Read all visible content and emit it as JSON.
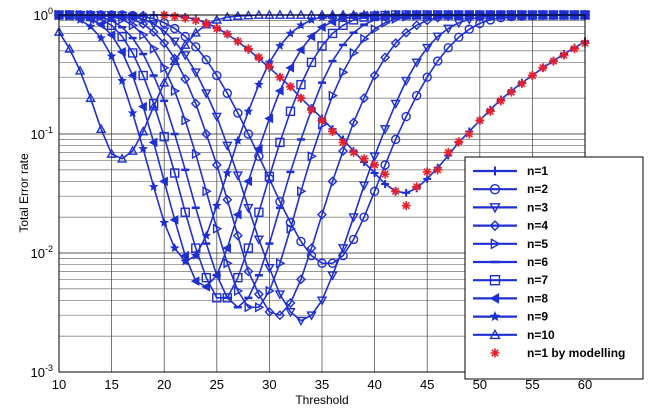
{
  "chart_data": {
    "type": "line",
    "title": "",
    "xlabel": "Threshold",
    "ylabel": "Total Error rate",
    "xlim": [
      10,
      60
    ],
    "ylim": [
      0.001,
      1
    ],
    "yscale": "log",
    "x_ticks": [
      "10",
      "15",
      "20",
      "25",
      "30",
      "35",
      "40",
      "45",
      "50",
      "55",
      "60"
    ],
    "y_ticks": [
      {
        "base": "10",
        "exp": "-3",
        "value": 0.001
      },
      {
        "base": "10",
        "exp": "-2",
        "value": 0.01
      },
      {
        "base": "10",
        "exp": "-1",
        "value": 0.1
      },
      {
        "base": "10",
        "exp": "0",
        "value": 1
      }
    ],
    "grid": true,
    "legend_position": "bottom-right",
    "line_color": "#1f2fd0",
    "model_color": "#e8202a",
    "x": [
      10,
      11,
      12,
      13,
      14,
      15,
      16,
      17,
      18,
      19,
      20,
      21,
      22,
      23,
      24,
      25,
      26,
      27,
      28,
      29,
      30,
      31,
      32,
      33,
      34,
      35,
      36,
      37,
      38,
      39,
      40,
      41,
      42,
      43,
      44,
      45,
      46,
      47,
      48,
      49,
      50,
      51,
      52,
      53,
      54,
      55,
      56,
      57,
      58,
      59,
      60
    ],
    "series": [
      {
        "name": "n=1",
        "marker": "plus",
        "values": [
          1.0,
          1.0,
          1.0,
          1.0,
          1.0,
          1.0,
          1.0,
          1.0,
          1.0,
          1.0,
          1.0,
          0.98,
          0.96,
          0.92,
          0.86,
          0.78,
          0.69,
          0.6,
          0.51,
          0.43,
          0.36,
          0.3,
          0.25,
          0.2,
          0.165,
          0.135,
          0.11,
          0.09,
          0.072,
          0.058,
          0.047,
          0.038,
          0.033,
          0.032,
          0.035,
          0.042,
          0.052,
          0.066,
          0.085,
          0.105,
          0.13,
          0.16,
          0.195,
          0.23,
          0.27,
          0.31,
          0.36,
          0.41,
          0.47,
          0.53,
          0.6
        ]
      },
      {
        "name": "n=2",
        "marker": "circle",
        "values": [
          1.0,
          1.0,
          1.0,
          1.0,
          1.0,
          1.0,
          1.0,
          0.99,
          0.97,
          0.93,
          0.86,
          0.77,
          0.66,
          0.54,
          0.42,
          0.31,
          0.22,
          0.15,
          0.1,
          0.065,
          0.042,
          0.027,
          0.018,
          0.0125,
          0.0095,
          0.0082,
          0.0082,
          0.0095,
          0.013,
          0.02,
          0.033,
          0.055,
          0.09,
          0.14,
          0.21,
          0.3,
          0.41,
          0.53,
          0.65,
          0.76,
          0.85,
          0.91,
          0.95,
          0.97,
          0.98,
          0.99,
          1.0,
          1.0,
          1.0,
          1.0,
          1.0
        ]
      },
      {
        "name": "n=3",
        "marker": "triangle-down",
        "values": [
          1.0,
          1.0,
          1.0,
          1.0,
          1.0,
          1.0,
          0.99,
          0.97,
          0.92,
          0.84,
          0.73,
          0.6,
          0.46,
          0.33,
          0.22,
          0.14,
          0.08,
          0.045,
          0.024,
          0.013,
          0.0075,
          0.0045,
          0.0032,
          0.0027,
          0.003,
          0.004,
          0.0065,
          0.011,
          0.02,
          0.037,
          0.065,
          0.11,
          0.18,
          0.28,
          0.4,
          0.53,
          0.66,
          0.77,
          0.86,
          0.92,
          0.96,
          0.98,
          0.99,
          1.0,
          1.0,
          1.0,
          1.0,
          1.0,
          1.0,
          1.0,
          1.0
        ]
      },
      {
        "name": "n=4",
        "marker": "diamond",
        "values": [
          1.0,
          1.0,
          1.0,
          1.0,
          1.0,
          0.99,
          0.97,
          0.92,
          0.84,
          0.72,
          0.58,
          0.43,
          0.29,
          0.18,
          0.1,
          0.055,
          0.028,
          0.014,
          0.007,
          0.0045,
          0.0032,
          0.003,
          0.0038,
          0.006,
          0.011,
          0.021,
          0.04,
          0.072,
          0.125,
          0.2,
          0.31,
          0.44,
          0.58,
          0.71,
          0.82,
          0.9,
          0.95,
          0.98,
          0.99,
          1.0,
          1.0,
          1.0,
          1.0,
          1.0,
          1.0,
          1.0,
          1.0,
          1.0,
          1.0,
          1.0,
          1.0
        ]
      },
      {
        "name": "n=5",
        "marker": "triangle-right",
        "values": [
          1.0,
          1.0,
          1.0,
          1.0,
          0.99,
          0.97,
          0.92,
          0.82,
          0.68,
          0.52,
          0.36,
          0.23,
          0.13,
          0.068,
          0.033,
          0.016,
          0.0082,
          0.0048,
          0.0035,
          0.0035,
          0.0048,
          0.0082,
          0.016,
          0.033,
          0.065,
          0.12,
          0.21,
          0.33,
          0.48,
          0.63,
          0.76,
          0.86,
          0.93,
          0.97,
          0.99,
          1.0,
          1.0,
          1.0,
          1.0,
          1.0,
          1.0,
          1.0,
          1.0,
          1.0,
          1.0,
          1.0,
          1.0,
          1.0,
          1.0,
          1.0,
          1.0
        ]
      },
      {
        "name": "n=6",
        "marker": "dash",
        "values": [
          1.0,
          1.0,
          1.0,
          0.99,
          0.96,
          0.9,
          0.79,
          0.64,
          0.47,
          0.31,
          0.19,
          0.1,
          0.05,
          0.024,
          0.012,
          0.0065,
          0.0042,
          0.0035,
          0.0042,
          0.0065,
          0.012,
          0.024,
          0.048,
          0.09,
          0.16,
          0.27,
          0.41,
          0.56,
          0.71,
          0.83,
          0.91,
          0.96,
          0.98,
          0.99,
          1.0,
          1.0,
          1.0,
          1.0,
          1.0,
          1.0,
          1.0,
          1.0,
          1.0,
          1.0,
          1.0,
          1.0,
          1.0,
          1.0,
          1.0,
          1.0,
          1.0
        ]
      },
      {
        "name": "n=7",
        "marker": "square",
        "values": [
          1.0,
          1.0,
          0.99,
          0.97,
          0.92,
          0.82,
          0.66,
          0.48,
          0.31,
          0.18,
          0.095,
          0.047,
          0.022,
          0.011,
          0.0062,
          0.0042,
          0.0042,
          0.0062,
          0.011,
          0.022,
          0.044,
          0.085,
          0.155,
          0.26,
          0.4,
          0.55,
          0.7,
          0.82,
          0.91,
          0.96,
          0.98,
          0.99,
          1.0,
          1.0,
          1.0,
          1.0,
          1.0,
          1.0,
          1.0,
          1.0,
          1.0,
          1.0,
          1.0,
          1.0,
          1.0,
          1.0,
          1.0,
          1.0,
          1.0,
          1.0,
          1.0
        ]
      },
      {
        "name": "n=8",
        "marker": "triangle-left",
        "values": [
          1.0,
          0.99,
          0.97,
          0.92,
          0.83,
          0.68,
          0.49,
          0.31,
          0.17,
          0.085,
          0.04,
          0.019,
          0.0095,
          0.0058,
          0.0052,
          0.0065,
          0.011,
          0.021,
          0.04,
          0.075,
          0.135,
          0.23,
          0.36,
          0.51,
          0.66,
          0.79,
          0.88,
          0.94,
          0.97,
          0.99,
          1.0,
          1.0,
          1.0,
          1.0,
          1.0,
          1.0,
          1.0,
          1.0,
          1.0,
          1.0,
          1.0,
          1.0,
          1.0,
          1.0,
          1.0,
          1.0,
          1.0,
          1.0,
          1.0,
          1.0,
          1.0
        ]
      },
      {
        "name": "n=9",
        "marker": "star",
        "values": [
          0.99,
          0.97,
          0.91,
          0.8,
          0.64,
          0.45,
          0.28,
          0.15,
          0.075,
          0.036,
          0.018,
          0.011,
          0.0085,
          0.0095,
          0.014,
          0.025,
          0.047,
          0.088,
          0.155,
          0.26,
          0.4,
          0.55,
          0.7,
          0.82,
          0.91,
          0.96,
          0.98,
          0.99,
          1.0,
          1.0,
          1.0,
          1.0,
          1.0,
          1.0,
          1.0,
          1.0,
          1.0,
          1.0,
          1.0,
          1.0,
          1.0,
          1.0,
          1.0,
          1.0,
          1.0,
          1.0,
          1.0,
          1.0,
          1.0,
          1.0,
          1.0
        ]
      },
      {
        "name": "n=10",
        "marker": "triangle-up",
        "values": [
          0.72,
          0.52,
          0.34,
          0.2,
          0.11,
          0.068,
          0.062,
          0.072,
          0.105,
          0.17,
          0.27,
          0.41,
          0.56,
          0.71,
          0.83,
          0.91,
          0.96,
          0.98,
          0.99,
          1.0,
          1.0,
          1.0,
          1.0,
          1.0,
          1.0,
          1.0,
          1.0,
          1.0,
          1.0,
          1.0,
          1.0,
          1.0,
          1.0,
          1.0,
          1.0,
          1.0,
          1.0,
          1.0,
          1.0,
          1.0,
          1.0,
          1.0,
          1.0,
          1.0,
          1.0,
          1.0,
          1.0,
          1.0,
          1.0,
          1.0,
          1.0
        ]
      },
      {
        "name": "n=1 by modelling",
        "marker": "asterisk",
        "color": "#e8202a",
        "line": false,
        "x": [
          20,
          21,
          22,
          23,
          24,
          25,
          26,
          27,
          28,
          29,
          30,
          31,
          32,
          33,
          34,
          35,
          36,
          37,
          38,
          39,
          40,
          41,
          42,
          43,
          44,
          45,
          46,
          47,
          48,
          49,
          50,
          51,
          52,
          53,
          54,
          55,
          56,
          57,
          58,
          59,
          60
        ],
        "values": [
          1.0,
          0.97,
          0.94,
          0.9,
          0.84,
          0.77,
          0.69,
          0.6,
          0.52,
          0.44,
          0.37,
          0.3,
          0.25,
          0.2,
          0.16,
          0.13,
          0.105,
          0.085,
          0.07,
          0.062,
          0.055,
          0.046,
          0.033,
          0.025,
          0.036,
          0.048,
          0.05,
          0.07,
          0.086,
          0.1,
          0.13,
          0.155,
          0.19,
          0.225,
          0.265,
          0.31,
          0.36,
          0.41,
          0.46,
          0.52,
          0.58
        ]
      }
    ]
  }
}
